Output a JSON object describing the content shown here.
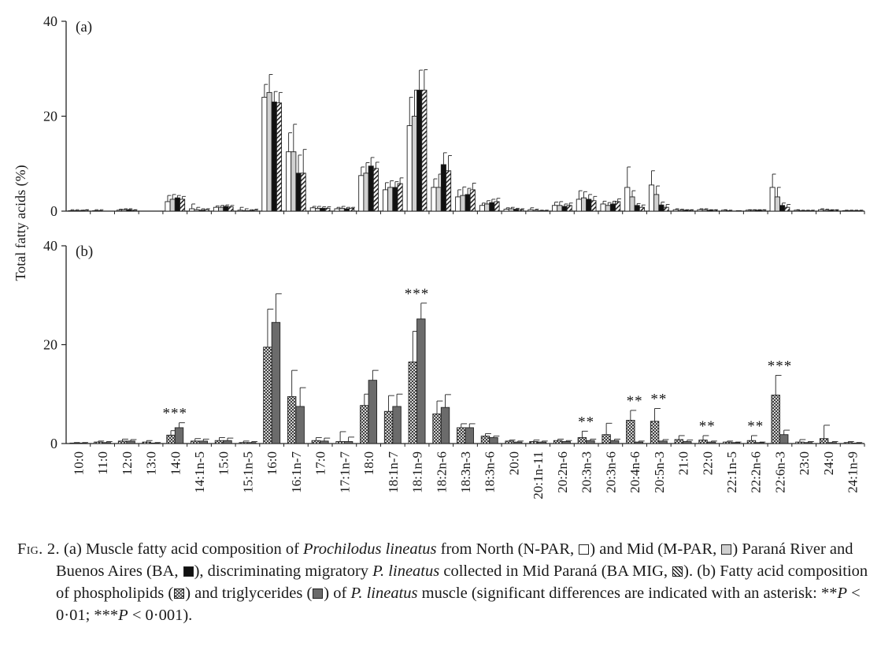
{
  "figure": {
    "ylabel": "Total fatty acids (%)"
  },
  "chart_data": [
    {
      "type": "bar",
      "panel_label": "(a)",
      "ylim": [
        0,
        40
      ],
      "yticks": [
        0,
        20,
        40
      ],
      "categories": [
        "10:0",
        "11:0",
        "12:0",
        "13:0",
        "14:0",
        "14:1n-5",
        "15:0",
        "15:1n-5",
        "16:0",
        "16:1n-7",
        "17:0",
        "17:1n-7",
        "18:0",
        "18:1n-7",
        "18:1n-9",
        "18:2n-6",
        "18:3n-3",
        "18:3n-6",
        "20:0",
        "20:1n-11",
        "20:2n-6",
        "20:3n-3",
        "20:3n-6",
        "20:4n-6",
        "20:5n-3",
        "21:0",
        "22:0",
        "22:1n-5",
        "22:2n-6",
        "22:6n-3",
        "23:0",
        "24:0",
        "24:1n-9"
      ],
      "series": [
        {
          "name": "N-PAR",
          "fill": "white",
          "values": [
            0.1,
            0.1,
            0.2,
            0,
            2.0,
            0.5,
            0.8,
            0.2,
            24.0,
            12.5,
            0.7,
            0.5,
            7.5,
            4.5,
            18.0,
            5.0,
            3.0,
            1.2,
            0.4,
            0.3,
            1.2,
            2.5,
            1.5,
            5.0,
            5.5,
            0.3,
            0.3,
            0.2,
            0.2,
            5.0,
            0.2,
            0.3,
            0.1
          ],
          "errors": [
            0.2,
            0.2,
            0.2,
            0,
            1.3,
            1.0,
            0.3,
            0.6,
            2.7,
            4.0,
            0.3,
            0.3,
            1.8,
            1.5,
            6.0,
            1.8,
            1.5,
            0.5,
            0.3,
            0.4,
            0.7,
            1.8,
            0.6,
            4.3,
            3.0,
            0.2,
            0.2,
            0.1,
            0.1,
            2.8,
            0.1,
            0.2,
            0.1
          ]
        },
        {
          "name": "M-PAR",
          "fill": "grey",
          "values": [
            0.1,
            0.1,
            0.3,
            0,
            2.5,
            0.3,
            0.8,
            0.1,
            25.0,
            12.5,
            0.6,
            0.6,
            8.0,
            5.0,
            20.0,
            5.0,
            3.3,
            1.5,
            0.5,
            0.2,
            1.2,
            2.8,
            1.2,
            3.0,
            3.5,
            0.2,
            0.3,
            0.1,
            0.2,
            3.0,
            0.1,
            0.2,
            0.1
          ],
          "errors": [
            0.2,
            0.2,
            0.2,
            0,
            1.0,
            0.5,
            0.4,
            0.4,
            3.8,
            5.8,
            0.4,
            0.4,
            2.2,
            1.4,
            5.5,
            2.8,
            1.8,
            0.7,
            0.3,
            0.2,
            0.8,
            1.3,
            0.6,
            1.3,
            1.8,
            0.2,
            0.2,
            0.1,
            0.1,
            2.0,
            0.1,
            0.2,
            0.1
          ]
        },
        {
          "name": "BA",
          "fill": "black",
          "values": [
            0.1,
            0,
            0.3,
            0,
            2.8,
            0.2,
            1.0,
            0.1,
            23.0,
            8.0,
            0.6,
            0.5,
            9.5,
            5.0,
            25.5,
            9.8,
            3.5,
            1.8,
            0.4,
            0.1,
            1.0,
            2.5,
            1.5,
            1.2,
            1.3,
            0.2,
            0.2,
            0,
            0.2,
            1.2,
            0.1,
            0.2,
            0.1
          ],
          "errors": [
            0.1,
            0,
            0.2,
            0,
            0.5,
            0.3,
            0.3,
            0.2,
            2.2,
            3.8,
            0.3,
            0.3,
            1.8,
            1.2,
            4.2,
            2.5,
            1.3,
            0.7,
            0.2,
            0.1,
            0.5,
            1.0,
            0.6,
            0.4,
            0.6,
            0.1,
            0.1,
            0,
            0.1,
            0.5,
            0.1,
            0.1,
            0.1
          ]
        },
        {
          "name": "BA MIG",
          "fill": "hatch",
          "values": [
            0.2,
            0,
            0.2,
            0,
            2.5,
            0.3,
            0.9,
            0.2,
            22.8,
            8.0,
            0.6,
            0.6,
            9.0,
            5.8,
            25.5,
            8.5,
            4.5,
            2.0,
            0.3,
            0.1,
            1.2,
            2.2,
            2.0,
            0.8,
            0.8,
            0.2,
            0.2,
            0.1,
            0.2,
            0.8,
            0.1,
            0.2,
            0.1
          ],
          "errors": [
            0.1,
            0,
            0.1,
            0,
            0.6,
            0.2,
            0.3,
            0.2,
            2.2,
            5.0,
            0.3,
            0.2,
            1.3,
            1.2,
            4.3,
            3.2,
            1.4,
            0.7,
            0.2,
            0.1,
            0.5,
            0.9,
            0.6,
            0.5,
            0.6,
            0.1,
            0.1,
            0,
            0.1,
            0.6,
            0.1,
            0.1,
            0.1
          ]
        }
      ]
    },
    {
      "type": "bar",
      "panel_label": "(b)",
      "ylim": [
        0,
        40
      ],
      "yticks": [
        0,
        20,
        40
      ],
      "categories": [
        "10:0",
        "11:0",
        "12:0",
        "13:0",
        "14:0",
        "14:1n-5",
        "15:0",
        "15:1n-5",
        "16:0",
        "16:1n-7",
        "17:0",
        "17:1n-7",
        "18:0",
        "18:1n-7",
        "18:1n-9",
        "18:2n-6",
        "18:3n-3",
        "18:3n-6",
        "20:0",
        "20:1n-11",
        "20:2n-6",
        "20:3n-3",
        "20:3n-6",
        "20:4n-6",
        "20:5n-3",
        "21:0",
        "22:0",
        "22:1n-5",
        "22:2n-6",
        "22:6n-3",
        "23:0",
        "24:0",
        "24:1n-9"
      ],
      "series": [
        {
          "name": "phospholipids",
          "fill": "crosshatch",
          "values": [
            0.1,
            0.3,
            0.5,
            0.3,
            1.7,
            0.5,
            0.6,
            0.2,
            19.5,
            9.5,
            0.6,
            0.4,
            7.7,
            6.5,
            16.5,
            6.0,
            3.2,
            1.5,
            0.5,
            0.4,
            0.6,
            1.2,
            1.8,
            4.7,
            4.5,
            0.8,
            0.7,
            0.3,
            0.6,
            9.8,
            0.3,
            1.0,
            0.2
          ],
          "errors": [
            0.1,
            0.2,
            0.4,
            0.3,
            0.9,
            0.5,
            0.6,
            0.3,
            7.7,
            5.3,
            0.6,
            2.0,
            2.3,
            3.2,
            6.2,
            2.6,
            0.8,
            0.5,
            0.2,
            0.3,
            0.3,
            1.3,
            2.3,
            2.0,
            2.6,
            0.8,
            0.9,
            0.2,
            1.0,
            4.0,
            0.5,
            2.7,
            0.2
          ]
        },
        {
          "name": "triglycerides",
          "fill": "darkgrey",
          "values": [
            0.1,
            0.2,
            0.5,
            0.1,
            3.2,
            0.5,
            0.6,
            0.2,
            24.5,
            7.5,
            0.5,
            0.4,
            12.8,
            7.5,
            25.2,
            7.3,
            3.2,
            1.2,
            0.3,
            0.3,
            0.4,
            0.6,
            0.6,
            0.3,
            0.5,
            0.4,
            0.3,
            0.2,
            0.2,
            1.8,
            0.2,
            0.2,
            0.1
          ],
          "errors": [
            0.1,
            0.2,
            0.3,
            0.1,
            1.0,
            0.4,
            0.5,
            0.2,
            5.8,
            3.8,
            0.6,
            0.9,
            2.0,
            2.5,
            3.2,
            2.6,
            0.8,
            0.3,
            0.2,
            0.2,
            0.2,
            0.3,
            0.3,
            0.2,
            0.3,
            0.3,
            0.2,
            0.1,
            0.1,
            0.9,
            0.2,
            0.2,
            0.1
          ]
        }
      ],
      "annotations": [
        {
          "category": "14:0",
          "text": "***"
        },
        {
          "category": "18:1n-9",
          "text": "***"
        },
        {
          "category": "20:3n-3",
          "text": "**"
        },
        {
          "category": "20:4n-6",
          "text": "**"
        },
        {
          "category": "20:5n-3",
          "text": "**"
        },
        {
          "category": "22:0",
          "text": "**"
        },
        {
          "category": "22:2n-6",
          "text": "**"
        },
        {
          "category": "22:6n-3",
          "text": "***"
        }
      ]
    }
  ],
  "caption": {
    "fig_label": "Fig. 2.",
    "a_intro": "(a) Muscle fatty acid composition of",
    "a_species": "Prochilodus lineatus",
    "a_from": "from North (N-PAR,",
    "a_mid": ") and Mid (M-PAR,",
    "a_parana": ") Paraná River and Buenos Aires (BA,",
    "a_discrim": "), discriminating migratory",
    "a_plin": "P. lineatus",
    "a_collected": "collected in Mid Paraná (BA MIG,",
    "b_intro": "). (b) Fatty acid composition of phospholipids (",
    "b_and": ") and triglycerides (",
    "b_of": ") of",
    "b_plin": "P. lineatus",
    "b_muscle": "muscle (significant differences are indicated with an asterisk: **",
    "p1": "P",
    "lt1": " < 0·01; ***",
    "p2": "P",
    "lt2": " < 0·001)."
  }
}
